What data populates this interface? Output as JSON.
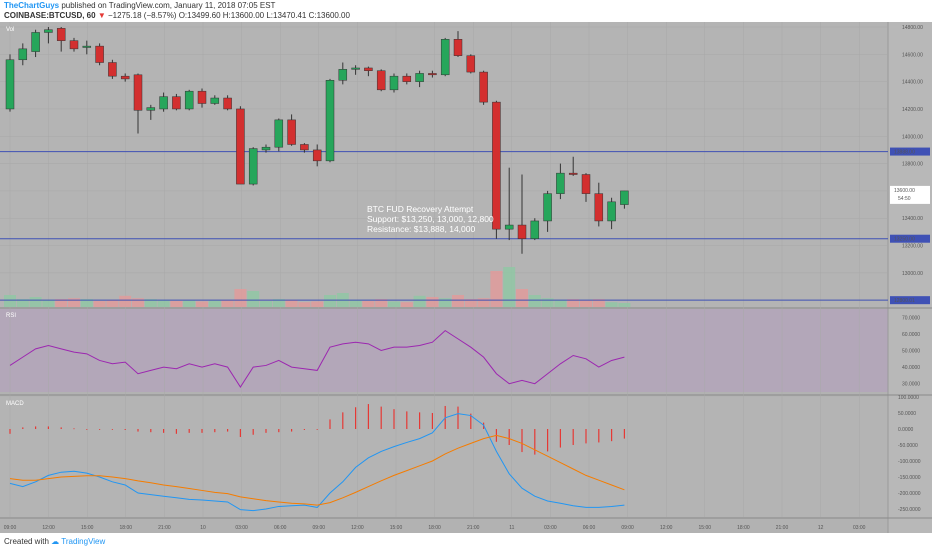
{
  "header": {
    "user": "TheChartGuys",
    "published": "published on TradingView.com, January 11, 2018 07:05 EST",
    "symbol": "COINBASE:BTCUSD, 60",
    "change_arrow": "▼",
    "change": "−1275.18 (−8.57%)",
    "ohlc": "O:13499.60 H:13600.00 L:13470.41 C:13600.00"
  },
  "footer": {
    "created_with": "Created with",
    "brand": "TradingView"
  },
  "chart_data": [
    {
      "type": "candlestick",
      "panel_label": "Vol",
      "ylim": [
        12750,
        14800
      ],
      "y_ticks": [
        13000,
        13200,
        13400,
        13600,
        13800,
        14000,
        14200,
        14400,
        14600,
        14800
      ],
      "y_tick_labels": [
        "13000.00",
        "13200.00",
        "13400.00",
        "13600.00",
        "13800.00",
        "14000.00",
        "14200.00",
        "14400.00",
        "14600.00",
        "14800.00"
      ],
      "x_tick_labels": [
        "09:00",
        "12:00",
        "15:00",
        "18:00",
        "21:00",
        "10",
        "03:00",
        "06:00",
        "09:00",
        "12:00",
        "15:00",
        "18:00",
        "21:00",
        "11",
        "03:00",
        "06:00",
        "09:00",
        "12:00",
        "15:00",
        "18:00",
        "21:00",
        "12",
        "03:00"
      ],
      "horizontal_levels": [
        {
          "value": 13888,
          "label": "13888.00"
        },
        {
          "value": 13250,
          "label": "13250.00"
        },
        {
          "value": 12800,
          "label": "12800.01"
        }
      ],
      "price_label": {
        "value": 13600,
        "label": "13600.00",
        "countdown": "54:50"
      },
      "annotation": [
        "BTC FUD Recovery Attempt",
        "Support: $13,250, 13,000, 12,800",
        "Resistance: $13,888, 14,000"
      ],
      "candles": [
        {
          "o": 14200,
          "h": 14600,
          "l": 14180,
          "c": 14560
        },
        {
          "o": 14560,
          "h": 14680,
          "l": 14520,
          "c": 14640
        },
        {
          "o": 14620,
          "h": 14780,
          "l": 14580,
          "c": 14760
        },
        {
          "o": 14760,
          "h": 14800,
          "l": 14680,
          "c": 14780
        },
        {
          "o": 14790,
          "h": 14800,
          "l": 14620,
          "c": 14700
        },
        {
          "o": 14700,
          "h": 14720,
          "l": 14620,
          "c": 14640
        },
        {
          "o": 14650,
          "h": 14700,
          "l": 14600,
          "c": 14660
        },
        {
          "o": 14660,
          "h": 14680,
          "l": 14520,
          "c": 14540
        },
        {
          "o": 14540,
          "h": 14560,
          "l": 14420,
          "c": 14440
        },
        {
          "o": 14440,
          "h": 14460,
          "l": 14400,
          "c": 14420
        },
        {
          "o": 14450,
          "h": 14460,
          "l": 14020,
          "c": 14190
        },
        {
          "o": 14190,
          "h": 14230,
          "l": 14120,
          "c": 14210
        },
        {
          "o": 14200,
          "h": 14320,
          "l": 14180,
          "c": 14290
        },
        {
          "o": 14290,
          "h": 14310,
          "l": 14190,
          "c": 14200
        },
        {
          "o": 14200,
          "h": 14340,
          "l": 14190,
          "c": 14330
        },
        {
          "o": 14330,
          "h": 14350,
          "l": 14210,
          "c": 14240
        },
        {
          "o": 14240,
          "h": 14300,
          "l": 14230,
          "c": 14280
        },
        {
          "o": 14280,
          "h": 14300,
          "l": 14190,
          "c": 14200
        },
        {
          "o": 14200,
          "h": 14220,
          "l": 13650,
          "c": 13650
        },
        {
          "o": 13650,
          "h": 13920,
          "l": 13640,
          "c": 13910
        },
        {
          "o": 13900,
          "h": 13940,
          "l": 13880,
          "c": 13920
        },
        {
          "o": 13920,
          "h": 14130,
          "l": 13890,
          "c": 14120
        },
        {
          "o": 14120,
          "h": 14160,
          "l": 13930,
          "c": 13940
        },
        {
          "o": 13940,
          "h": 13950,
          "l": 13880,
          "c": 13900
        },
        {
          "o": 13900,
          "h": 13940,
          "l": 13780,
          "c": 13820
        },
        {
          "o": 13820,
          "h": 14420,
          "l": 13810,
          "c": 14410
        },
        {
          "o": 14410,
          "h": 14540,
          "l": 14380,
          "c": 14490
        },
        {
          "o": 14490,
          "h": 14520,
          "l": 14450,
          "c": 14500
        },
        {
          "o": 14500,
          "h": 14510,
          "l": 14440,
          "c": 14480
        },
        {
          "o": 14480,
          "h": 14490,
          "l": 14330,
          "c": 14340
        },
        {
          "o": 14340,
          "h": 14460,
          "l": 14320,
          "c": 14440
        },
        {
          "o": 14440,
          "h": 14460,
          "l": 14380,
          "c": 14400
        },
        {
          "o": 14400,
          "h": 14480,
          "l": 14360,
          "c": 14460
        },
        {
          "o": 14460,
          "h": 14480,
          "l": 14430,
          "c": 14450
        },
        {
          "o": 14450,
          "h": 14720,
          "l": 14440,
          "c": 14710
        },
        {
          "o": 14710,
          "h": 14770,
          "l": 14580,
          "c": 14590
        },
        {
          "o": 14590,
          "h": 14600,
          "l": 14460,
          "c": 14470
        },
        {
          "o": 14470,
          "h": 14480,
          "l": 14230,
          "c": 14250
        },
        {
          "o": 14250,
          "h": 14260,
          "l": 13250,
          "c": 13320
        },
        {
          "o": 13320,
          "h": 13770,
          "l": 13240,
          "c": 13350
        },
        {
          "o": 13350,
          "h": 13720,
          "l": 13140,
          "c": 13250
        },
        {
          "o": 13250,
          "h": 13400,
          "l": 13240,
          "c": 13380
        },
        {
          "o": 13380,
          "h": 13600,
          "l": 13300,
          "c": 13580
        },
        {
          "o": 13580,
          "h": 13800,
          "l": 13540,
          "c": 13730
        },
        {
          "o": 13730,
          "h": 13850,
          "l": 13710,
          "c": 13720
        },
        {
          "o": 13720,
          "h": 13730,
          "l": 13520,
          "c": 13580
        },
        {
          "o": 13580,
          "h": 13660,
          "l": 13340,
          "c": 13380
        },
        {
          "o": 13380,
          "h": 13550,
          "l": 13320,
          "c": 13520
        },
        {
          "o": 13500,
          "h": 13600,
          "l": 13470,
          "c": 13600
        }
      ],
      "volume_max": 100,
      "volume": [
        30,
        20,
        25,
        18,
        20,
        22,
        20,
        15,
        18,
        28,
        22,
        20,
        18,
        15,
        16,
        14,
        16,
        18,
        45,
        40,
        15,
        20,
        18,
        12,
        14,
        30,
        35,
        18,
        15,
        20,
        14,
        12,
        28,
        25,
        22,
        30,
        20,
        22,
        90,
        100,
        45,
        30,
        22,
        18,
        20,
        16,
        20,
        12,
        10
      ]
    },
    {
      "type": "line",
      "panel_label": "RSI",
      "ylim": [
        25,
        75
      ],
      "y_ticks": [
        30,
        40,
        50,
        60,
        70
      ],
      "y_tick_labels": [
        "30.0000",
        "40.0000",
        "50.0000",
        "60.0000",
        "70.0000"
      ],
      "series": [
        {
          "values": [
            41,
            46,
            51,
            53,
            51,
            49,
            48,
            44,
            42,
            43,
            36,
            38,
            40,
            39,
            42,
            40,
            42,
            40,
            28,
            40,
            41,
            44,
            40,
            39,
            38,
            52,
            54,
            55,
            54,
            50,
            52,
            52,
            53,
            55,
            62,
            57,
            52,
            46,
            36,
            30,
            32,
            30,
            36,
            42,
            47,
            45,
            40,
            44,
            46
          ]
        }
      ]
    },
    {
      "type": "bar+line",
      "panel_label": "MACD",
      "ylim": [
        -275,
        100
      ],
      "y_ticks": [
        -250,
        -200,
        -150,
        -100,
        -50,
        0,
        50,
        100
      ],
      "y_tick_labels": [
        "-250.0000",
        "-200.0000",
        "-150.0000",
        "-100.0000",
        "-50.0000",
        "0.0000",
        "50.0000",
        "100.0000"
      ],
      "histogram": [
        -15,
        5,
        8,
        8,
        5,
        2,
        0,
        -2,
        -2,
        -3,
        -8,
        -10,
        -12,
        -15,
        -12,
        -12,
        -10,
        -8,
        -25,
        -18,
        -12,
        -10,
        -8,
        -3,
        0,
        30,
        52,
        68,
        78,
        70,
        62,
        55,
        52,
        50,
        72,
        70,
        48,
        20,
        -40,
        -50,
        -72,
        -80,
        -70,
        -58,
        -50,
        -45,
        -42,
        -38,
        -30
      ],
      "series": [
        {
          "color": "#2196f3",
          "values": [
            -170,
            -180,
            -165,
            -145,
            -135,
            -132,
            -138,
            -150,
            -165,
            -175,
            -200,
            -205,
            -210,
            -215,
            -220,
            -222,
            -225,
            -228,
            -252,
            -255,
            -250,
            -242,
            -240,
            -238,
            -245,
            -200,
            -165,
            -120,
            -90,
            -70,
            -55,
            -42,
            -30,
            -12,
            35,
            48,
            42,
            12,
            -70,
            -140,
            -185,
            -210,
            -225,
            -232,
            -240,
            -245,
            -245,
            -242,
            -238
          ]
        },
        {
          "color": "#f57c00",
          "values": [
            -155,
            -160,
            -160,
            -155,
            -150,
            -148,
            -146,
            -146,
            -150,
            -155,
            -162,
            -168,
            -175,
            -180,
            -186,
            -192,
            -198,
            -202,
            -212,
            -218,
            -224,
            -228,
            -232,
            -234,
            -238,
            -230,
            -215,
            -198,
            -180,
            -162,
            -145,
            -130,
            -115,
            -100,
            -78,
            -60,
            -45,
            -30,
            -20,
            -30,
            -45,
            -65,
            -85,
            -105,
            -125,
            -145,
            -160,
            -175,
            -190
          ]
        }
      ]
    }
  ]
}
